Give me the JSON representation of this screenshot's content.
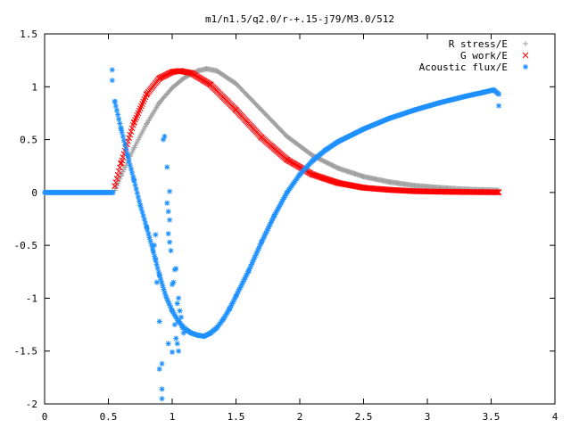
{
  "chart_data": {
    "type": "scatter",
    "title": "m1/n1.5/q2.0/r-+.15-j79/M3.0/512",
    "xlabel": "",
    "ylabel": "",
    "xlim": [
      0,
      4
    ],
    "ylim": [
      -2,
      1.5
    ],
    "x_ticks": [
      "0",
      "0.5",
      "1",
      "1.5",
      "2",
      "2.5",
      "3",
      "3.5",
      "4"
    ],
    "y_ticks": [
      "1.5",
      "1",
      "0.5",
      "0",
      "-0.5",
      "-1",
      "-1.5",
      "-2"
    ],
    "grid": false,
    "legend_position": "top-right",
    "series": [
      {
        "name": "R stress/E",
        "marker": "+",
        "color": "#a0a0a0",
        "points": [
          [
            0.55,
            0.02
          ],
          [
            0.6,
            0.16
          ],
          [
            0.7,
            0.42
          ],
          [
            0.8,
            0.65
          ],
          [
            0.9,
            0.85
          ],
          [
            1.0,
            0.99
          ],
          [
            1.1,
            1.09
          ],
          [
            1.2,
            1.15
          ],
          [
            1.27,
            1.17
          ],
          [
            1.35,
            1.15
          ],
          [
            1.5,
            1.03
          ],
          [
            1.7,
            0.78
          ],
          [
            1.9,
            0.53
          ],
          [
            2.1,
            0.35
          ],
          [
            2.3,
            0.23
          ],
          [
            2.5,
            0.15
          ],
          [
            2.7,
            0.1
          ],
          [
            2.9,
            0.065
          ],
          [
            3.1,
            0.045
          ],
          [
            3.3,
            0.03
          ],
          [
            3.56,
            0.02
          ]
        ]
      },
      {
        "name": "G work/E",
        "marker": "x",
        "color": "#ff0000",
        "points": [
          [
            0.55,
            0.06
          ],
          [
            0.6,
            0.28
          ],
          [
            0.7,
            0.66
          ],
          [
            0.8,
            0.93
          ],
          [
            0.9,
            1.08
          ],
          [
            1.0,
            1.14
          ],
          [
            1.06,
            1.15
          ],
          [
            1.15,
            1.13
          ],
          [
            1.3,
            1.02
          ],
          [
            1.5,
            0.78
          ],
          [
            1.7,
            0.52
          ],
          [
            1.9,
            0.31
          ],
          [
            2.1,
            0.17
          ],
          [
            2.3,
            0.09
          ],
          [
            2.5,
            0.045
          ],
          [
            2.7,
            0.025
          ],
          [
            2.9,
            0.012
          ],
          [
            3.1,
            0.007
          ],
          [
            3.3,
            0.004
          ],
          [
            3.56,
            0.002
          ]
        ]
      },
      {
        "name": "Acoustic flux/E",
        "marker": "*",
        "color": "#1e90ff",
        "points": [
          [
            0.55,
            0.86
          ],
          [
            0.6,
            0.6
          ],
          [
            0.65,
            0.35
          ],
          [
            0.7,
            0.12
          ],
          [
            0.75,
            -0.12
          ],
          [
            0.8,
            -0.33
          ],
          [
            0.85,
            -0.55
          ],
          [
            0.9,
            -0.78
          ],
          [
            0.95,
            -0.98
          ],
          [
            1.0,
            -1.12
          ],
          [
            1.05,
            -1.22
          ],
          [
            1.1,
            -1.29
          ],
          [
            1.15,
            -1.33
          ],
          [
            1.2,
            -1.35
          ],
          [
            1.25,
            -1.36
          ],
          [
            1.3,
            -1.33
          ],
          [
            1.35,
            -1.28
          ],
          [
            1.4,
            -1.2
          ],
          [
            1.45,
            -1.1
          ],
          [
            1.5,
            -0.98
          ],
          [
            1.6,
            -0.74
          ],
          [
            1.7,
            -0.47
          ],
          [
            1.8,
            -0.22
          ],
          [
            1.9,
            0.0
          ],
          [
            2.0,
            0.17
          ],
          [
            2.1,
            0.3
          ],
          [
            2.2,
            0.4
          ],
          [
            2.3,
            0.48
          ],
          [
            2.5,
            0.6
          ],
          [
            2.7,
            0.7
          ],
          [
            2.9,
            0.78
          ],
          [
            3.1,
            0.85
          ],
          [
            3.3,
            0.91
          ],
          [
            3.45,
            0.95
          ],
          [
            3.52,
            0.97
          ],
          [
            3.56,
            0.93
          ],
          [
            3.56,
            0.82
          ]
        ],
        "scattered_points": [
          [
            0.53,
            1.16
          ],
          [
            0.53,
            1.06
          ],
          [
            0.55,
            0.86
          ],
          [
            0.87,
            -0.4
          ],
          [
            0.86,
            -0.5
          ],
          [
            0.87,
            -0.63
          ],
          [
            0.88,
            -0.85
          ],
          [
            0.9,
            -1.22
          ],
          [
            0.9,
            -1.67
          ],
          [
            0.92,
            -1.62
          ],
          [
            0.92,
            -1.86
          ],
          [
            0.92,
            -1.95
          ],
          [
            0.93,
            0.5
          ],
          [
            0.94,
            0.53
          ],
          [
            0.96,
            0.24
          ],
          [
            0.98,
            0.01
          ],
          [
            0.96,
            -0.1
          ],
          [
            0.97,
            -0.18
          ],
          [
            0.98,
            -0.26
          ],
          [
            0.97,
            -0.39
          ],
          [
            0.98,
            -0.47
          ],
          [
            0.99,
            -0.55
          ],
          [
            1.0,
            -0.87
          ],
          [
            1.01,
            -0.85
          ],
          [
            1.02,
            -0.73
          ],
          [
            1.03,
            -0.72
          ],
          [
            1.04,
            -1.05
          ],
          [
            1.05,
            -1.0
          ],
          [
            1.06,
            -1.12
          ],
          [
            1.07,
            -1.18
          ],
          [
            1.02,
            -1.25
          ],
          [
            1.03,
            -1.38
          ],
          [
            1.04,
            -1.43
          ],
          [
            1.05,
            -1.5
          ],
          [
            1.0,
            -1.51
          ],
          [
            0.97,
            -1.43
          ],
          [
            1.08,
            -1.28
          ],
          [
            1.09,
            -1.33
          ],
          [
            1.1,
            -1.29
          ],
          [
            1.12,
            -1.31
          ]
        ]
      }
    ]
  }
}
